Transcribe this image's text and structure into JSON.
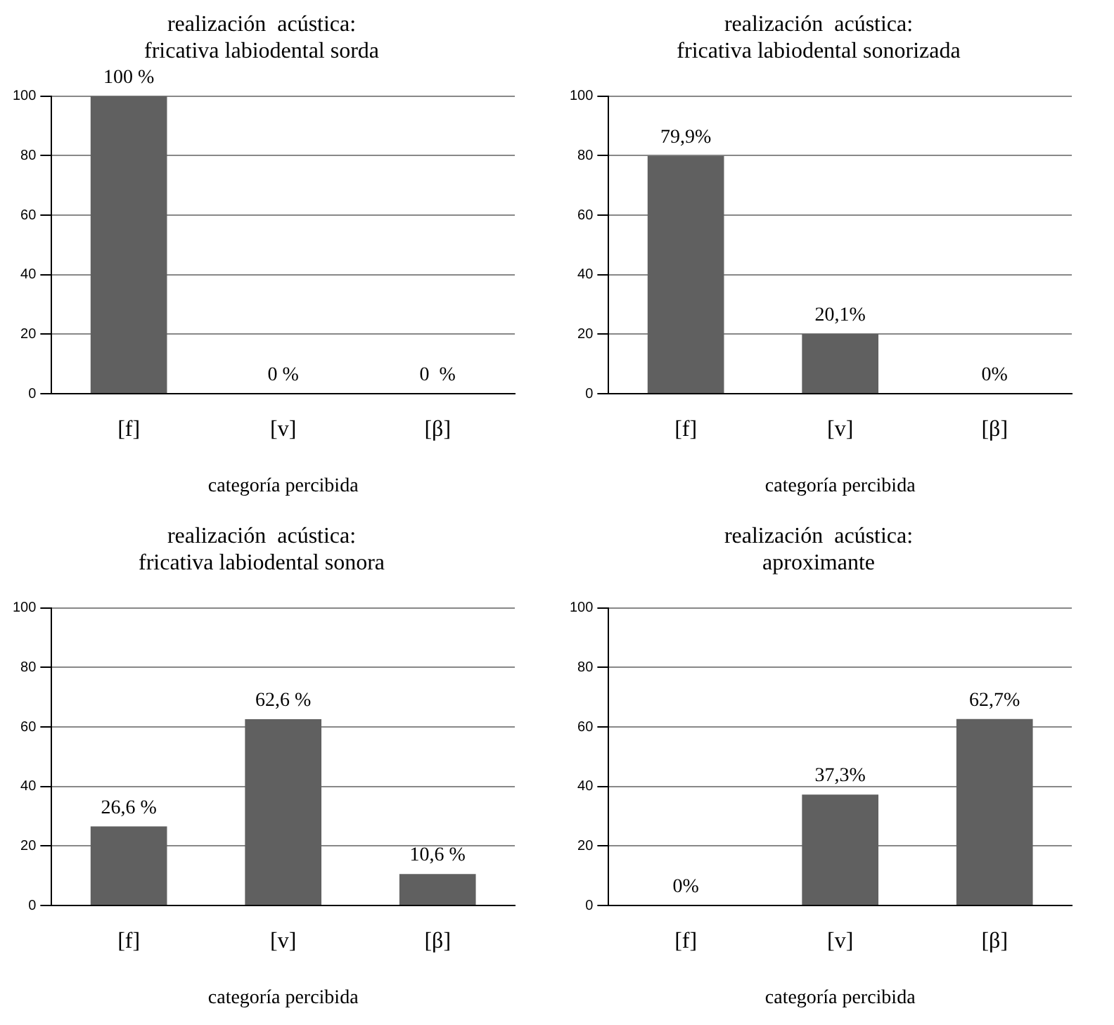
{
  "chart_data": [
    {
      "type": "bar",
      "title": "realización  acústica:\nfricativa labiodental sorda",
      "xlabel": "categoría percibida",
      "categories": [
        "[f]",
        "[v]",
        "[β]"
      ],
      "values": [
        100,
        0,
        0
      ],
      "value_labels": [
        "100 %",
        "0 %",
        "0  %"
      ],
      "color": "#606060",
      "ylim": [
        0,
        100
      ],
      "yticks": [
        0,
        20,
        40,
        60,
        80,
        100
      ],
      "grid": "y"
    },
    {
      "type": "bar",
      "title": "realización  acústica:\nfricativa labiodental sonorizada",
      "xlabel": "categoría percibida",
      "categories": [
        "[f]",
        "[v]",
        "[β]"
      ],
      "values": [
        79.9,
        20.1,
        0
      ],
      "value_labels": [
        "79,9%",
        "20,1%",
        "0%"
      ],
      "color": "#606060",
      "ylim": [
        0,
        100
      ],
      "yticks": [
        0,
        20,
        40,
        60,
        80,
        100
      ],
      "grid": "y"
    },
    {
      "type": "bar",
      "title": "realización  acústica:\nfricativa labiodental sonora",
      "xlabel": "categoría percibida",
      "categories": [
        "[f]",
        "[v]",
        "[β]"
      ],
      "values": [
        26.6,
        62.6,
        10.6
      ],
      "value_labels": [
        "26,6 %",
        "62,6 %",
        "10,6 %"
      ],
      "color": "#606060",
      "ylim": [
        0,
        100
      ],
      "yticks": [
        0,
        20,
        40,
        60,
        80,
        100
      ],
      "grid": "y"
    },
    {
      "type": "bar",
      "title": "realización  acústica:\naproximante",
      "xlabel": "categoría percibida",
      "categories": [
        "[f]",
        "[v]",
        "[β]"
      ],
      "values": [
        0,
        37.3,
        62.7
      ],
      "value_labels": [
        "0%",
        "37,3%",
        "62,7%"
      ],
      "color": "#606060",
      "ylim": [
        0,
        100
      ],
      "yticks": [
        0,
        20,
        40,
        60,
        80,
        100
      ],
      "grid": "y"
    }
  ]
}
